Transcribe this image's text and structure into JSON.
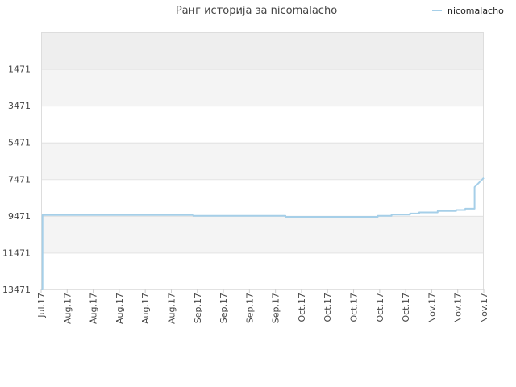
{
  "chart_data": {
    "type": "line",
    "title": "Ранг историја за nicomalacho",
    "xlabel": "",
    "ylabel": "",
    "y_reversed": true,
    "ylim": [
      13471,
      -529
    ],
    "yticks": [
      1471,
      3471,
      5471,
      7471,
      9471,
      11471,
      13471
    ],
    "xtick_labels": [
      "Jul.17",
      "Aug.17",
      "Aug.17",
      "Aug.17",
      "Aug.17",
      "Aug.17",
      "Sep.17",
      "Sep.17",
      "Sep.17",
      "Sep.17",
      "Oct.17",
      "Oct.17",
      "Oct.17",
      "Oct.17",
      "Oct.17",
      "Nov.17",
      "Nov.17",
      "Nov.17"
    ],
    "grid": true,
    "alternating_bands": true,
    "legend": {
      "position": "top-right",
      "entries": [
        "nicomalacho"
      ]
    },
    "series": [
      {
        "name": "nicomalacho",
        "color": "#a6cfe8",
        "x": [
          0,
          0.15,
          0.15,
          16.5,
          16.5,
          26.5,
          26.5,
          34.5,
          34.5,
          36.5,
          36.5,
          38,
          38,
          40,
          40,
          41,
          41,
          43,
          43,
          45,
          45,
          46,
          46,
          47,
          47,
          48
        ],
        "y": [
          13471,
          13471,
          9420,
          9420,
          9470,
          9470,
          9520,
          9520,
          9520,
          9520,
          9470,
          9470,
          9400,
          9400,
          9340,
          9340,
          9280,
          9280,
          9200,
          9200,
          9150,
          9150,
          9080,
          9080,
          7900,
          7400
        ]
      }
    ]
  }
}
